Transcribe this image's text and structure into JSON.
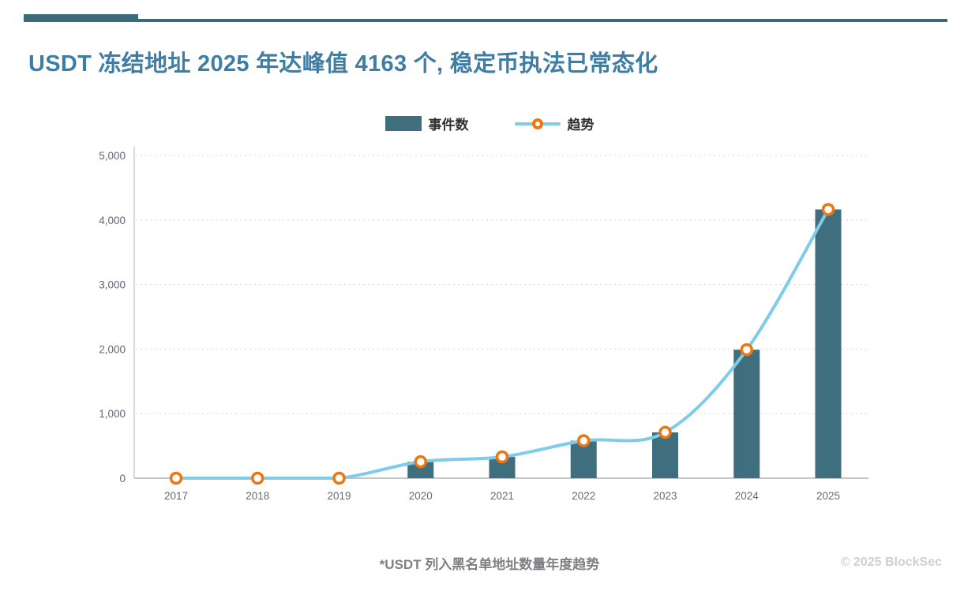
{
  "header": {
    "title": "USDT 冻结地址 2025 年达峰值 4163 个, 稳定币执法已常态化"
  },
  "legend": [
    {
      "label": "事件数",
      "type": "bar-swatch"
    },
    {
      "label": "趋势",
      "type": "line-marker-swatch"
    }
  ],
  "footer": {
    "caption": "*USDT 列入黑名单地址数量年度趋势",
    "copyright": "© 2025 BlockSec"
  },
  "colors": {
    "accent": "#3e7ea4",
    "decoration": "#3c6a79",
    "bar": "#3f6e7e",
    "trend_line": "#7fcbea",
    "trend_marker": "#ee7611"
  },
  "chart_data": {
    "type": "bar",
    "categories": [
      "2017",
      "2018",
      "2019",
      "2020",
      "2021",
      "2022",
      "2023",
      "2024",
      "2025"
    ],
    "series": [
      {
        "name": "事件数",
        "type": "bar",
        "values": [
          0,
          0,
          0,
          255,
          330,
          580,
          710,
          1990,
          4163
        ]
      },
      {
        "name": "趋势",
        "type": "line",
        "values": [
          0,
          0,
          0,
          255,
          330,
          580,
          710,
          1990,
          4163
        ]
      }
    ],
    "title": "",
    "xlabel": "",
    "ylabel": "",
    "ylim": [
      0,
      5000
    ],
    "yticks": [
      0,
      1000,
      2000,
      3000,
      4000,
      5000
    ],
    "ytick_labels": [
      "0",
      "1,000",
      "2,000",
      "3,000",
      "4,000",
      "5,000"
    ],
    "grid": "horizontal-dashed",
    "legend_position": "top-center"
  }
}
